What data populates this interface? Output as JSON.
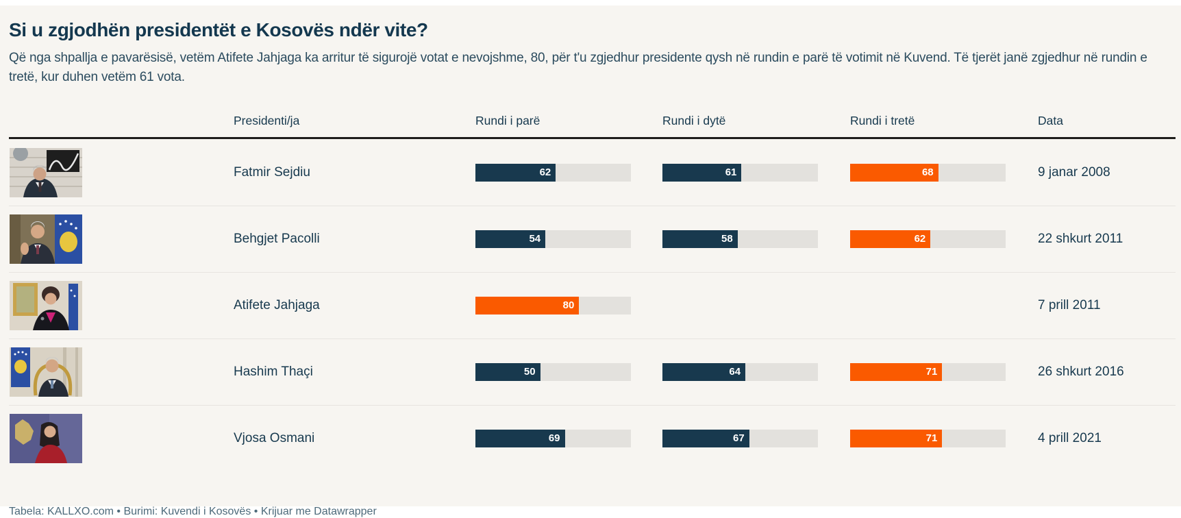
{
  "header": {
    "title": "Si u zgjodhën presidentët e Kosovës ndër vite?",
    "intro": "Që nga shpallja e pavarësisë, vetëm Atifete Jahjaga ka arritur të sigurojë votat e nevojshme, 80, për t'u zgjedhur presidente qysh në rundin e parë të votimit në Kuvend. Të tjerët janë zgjedhur në rundin e tretë, kur duhen vetëm 61 vota."
  },
  "table": {
    "columns": {
      "president": "Presidenti/ja",
      "round1": "Rundi i parë",
      "round2": "Rundi i dytë",
      "round3": "Rundi i tretë",
      "date": "Data"
    }
  },
  "chart_data": {
    "type": "table",
    "title": "Si u zgjodhën presidentët e Kosovës ndër vite?",
    "subtitle": "Që nga shpallja e pavarësisë, vetëm Atifete Jahjaga ka arritur të sigurojë votat e nevojshme, 80, për t'u zgjedhur presidente qysh në rundin e parë të votimit në Kuvend. Të tjerët janë zgjedhur në rundin e tretë, kur duhen vetëm 61 vota.",
    "columns": [
      "Presidenti/ja",
      "Rundi i parë",
      "Rundi i dytë",
      "Rundi i tretë",
      "Data"
    ],
    "bar_scale": {
      "min": 0,
      "max": 120
    },
    "colors": {
      "regular_round": "#18394e",
      "elected_round": "#fa5a00",
      "bar_track": "#e3e1dd"
    },
    "rows": [
      {
        "president": "Fatmir Sejdiu",
        "photo": "fatmir-sejdiu",
        "round1": 62,
        "round2": 61,
        "round3": 68,
        "elected_in_round": 3,
        "date": "9 janar 2008"
      },
      {
        "president": "Behgjet Pacolli",
        "photo": "behgjet-pacolli",
        "round1": 54,
        "round2": 58,
        "round3": 62,
        "elected_in_round": 3,
        "date": "22 shkurt 2011"
      },
      {
        "president": "Atifete Jahjaga",
        "photo": "atifete-jahjaga",
        "round1": 80,
        "round2": null,
        "round3": null,
        "elected_in_round": 1,
        "date": "7 prill 2011"
      },
      {
        "president": "Hashim Thaçi",
        "photo": "hashim-thaci",
        "round1": 50,
        "round2": 64,
        "round3": 71,
        "elected_in_round": 3,
        "date": "26 shkurt 2016"
      },
      {
        "president": "Vjosa Osmani",
        "photo": "vjosa-osmani",
        "round1": 69,
        "round2": 67,
        "round3": 71,
        "elected_in_round": 3,
        "date": "4 prill 2021"
      }
    ]
  },
  "footer": {
    "clipped_text": "Tabela: KALLXO.com • Burimi: Kuvendi i Kosovës • Krijuar me Datawrapper"
  }
}
